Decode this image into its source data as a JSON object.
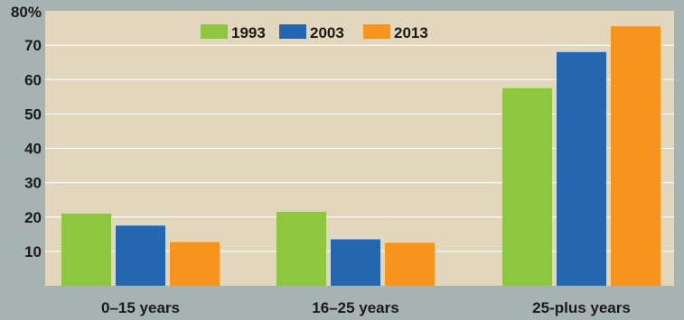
{
  "chart_data": {
    "type": "bar",
    "title": "",
    "xlabel": "",
    "ylabel": "",
    "categories": [
      "0–15 years",
      "16–25 years",
      "25-plus years"
    ],
    "series": [
      {
        "name": "1993",
        "color": "#8dc63f",
        "values": [
          21,
          21.5,
          57.5
        ]
      },
      {
        "name": "2003",
        "color": "#2566b0",
        "values": [
          17.5,
          13.5,
          68
        ]
      },
      {
        "name": "2013",
        "color": "#f7941d",
        "values": [
          12.7,
          12.5,
          75.5
        ]
      }
    ],
    "ylim": [
      0,
      80
    ],
    "yticks": [
      10,
      20,
      30,
      40,
      50,
      60,
      70,
      80
    ],
    "ytick_labels": [
      "10",
      "20",
      "30",
      "40",
      "50",
      "60",
      "70",
      "80%"
    ],
    "grid": true,
    "legend_position": "top-center",
    "colors": {
      "plot_background": "#e2d6bc",
      "page_background": "#a7b2b3",
      "gridline": "#ffffff"
    }
  }
}
